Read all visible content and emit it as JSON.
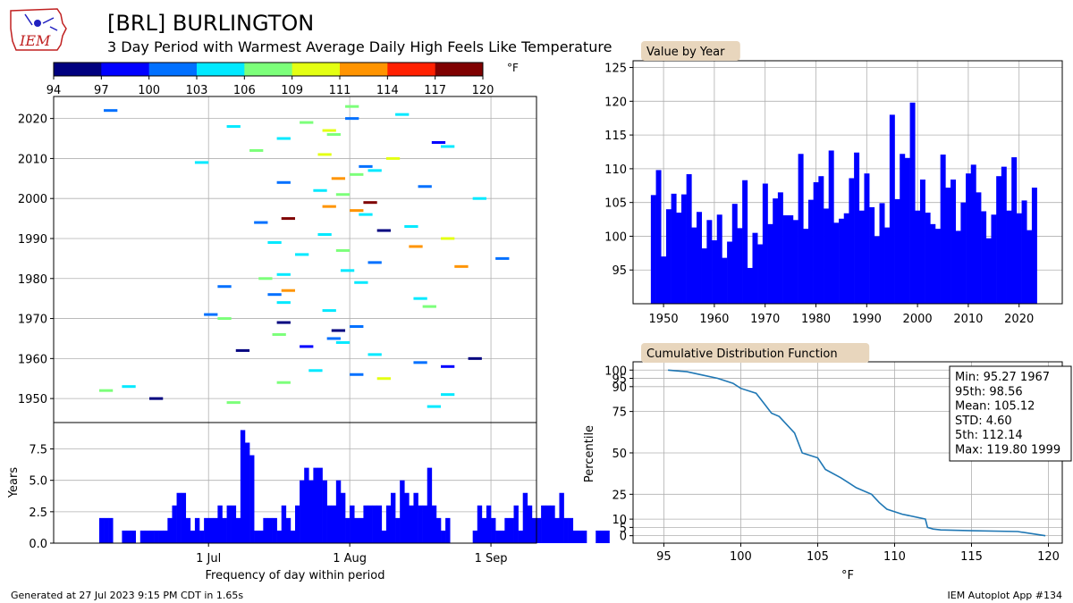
{
  "header": {
    "title": "[BRL] BURLINGTON",
    "subtitle": "3 Day Period with Warmest Average Daily High Feels Like Temperature",
    "logo_text": "IEM"
  },
  "footer": {
    "left": "Generated at 27 Jul 2023 9:15 PM CDT in 1.65s",
    "right": "IEM Autoplot App #134"
  },
  "colors": {
    "bar": "#0000ff",
    "cdf_line": "#1f77b4",
    "grid": "#b0b0b0",
    "panel_label_bg": "#e8d6bd",
    "colorbar": [
      "#00007f",
      "#0000ff",
      "#0070ff",
      "#00e9ff",
      "#7cff7a",
      "#e4ff13",
      "#ff9400",
      "#ff2000",
      "#7f0000"
    ]
  },
  "chart_data": [
    {
      "id": "colorbar",
      "type": "colorbar",
      "ticks": [
        "94",
        "97",
        "100",
        "103",
        "106",
        "109",
        "111",
        "114",
        "117",
        "120"
      ],
      "unit": "°F"
    },
    {
      "id": "periods",
      "type": "scatter",
      "ylabel": "",
      "yticks": [
        1950,
        1960,
        1970,
        1980,
        1990,
        2000,
        2010,
        2020
      ],
      "ylim": [
        1944,
        2025.5
      ],
      "xlim_doy": [
        148,
        254
      ],
      "grid": true,
      "points": [
        {
          "year": 1948,
          "start": 230,
          "value": 104
        },
        {
          "year": 1949,
          "start": 186,
          "value": 108
        },
        {
          "year": 1950,
          "start": 169,
          "value": 94
        },
        {
          "year": 1951,
          "start": 233,
          "value": 104
        },
        {
          "year": 1952,
          "start": 158,
          "value": 107
        },
        {
          "year": 1953,
          "start": 163,
          "value": 104
        },
        {
          "year": 1954,
          "start": 197,
          "value": 106
        },
        {
          "year": 1955,
          "start": 219,
          "value": 110
        },
        {
          "year": 1956,
          "start": 213,
          "value": 101
        },
        {
          "year": 1957,
          "start": 204,
          "value": 104
        },
        {
          "year": 1958,
          "start": 233,
          "value": 99
        },
        {
          "year": 1959,
          "start": 227,
          "value": 102
        },
        {
          "year": 1960,
          "start": 239,
          "value": 95
        },
        {
          "year": 1961,
          "start": 217,
          "value": 104
        },
        {
          "year": 1962,
          "start": 188,
          "value": 95
        },
        {
          "year": 1963,
          "start": 202,
          "value": 98
        },
        {
          "year": 1964,
          "start": 210,
          "value": 104
        },
        {
          "year": 1965,
          "start": 208,
          "value": 101
        },
        {
          "year": 1966,
          "start": 196,
          "value": 107
        },
        {
          "year": 1967,
          "start": 209,
          "value": 95
        },
        {
          "year": 1968,
          "start": 213,
          "value": 101
        },
        {
          "year": 1969,
          "start": 197,
          "value": 96
        },
        {
          "year": 1970,
          "start": 184,
          "value": 106
        },
        {
          "year": 1971,
          "start": 181,
          "value": 101
        },
        {
          "year": 1972,
          "start": 207,
          "value": 104
        },
        {
          "year": 1973,
          "start": 229,
          "value": 107
        },
        {
          "year": 1974,
          "start": 197,
          "value": 104
        },
        {
          "year": 1975,
          "start": 227,
          "value": 104
        },
        {
          "year": 1976,
          "start": 195,
          "value": 101
        },
        {
          "year": 1977,
          "start": 198,
          "value": 112
        },
        {
          "year": 1978,
          "start": 184,
          "value": 100
        },
        {
          "year": 1979,
          "start": 214,
          "value": 104
        },
        {
          "year": 1980,
          "start": 193,
          "value": 106
        },
        {
          "year": 1981,
          "start": 197,
          "value": 105
        },
        {
          "year": 1982,
          "start": 211,
          "value": 103
        },
        {
          "year": 1983,
          "start": 236,
          "value": 113
        },
        {
          "year": 1984,
          "start": 217,
          "value": 101
        },
        {
          "year": 1985,
          "start": 245,
          "value": 101
        },
        {
          "year": 1986,
          "start": 201,
          "value": 103
        },
        {
          "year": 1987,
          "start": 210,
          "value": 107
        },
        {
          "year": 1988,
          "start": 226,
          "value": 112
        },
        {
          "year": 1989,
          "start": 195,
          "value": 104
        },
        {
          "year": 1990,
          "start": 233,
          "value": 109
        },
        {
          "year": 1991,
          "start": 206,
          "value": 104
        },
        {
          "year": 1992,
          "start": 219,
          "value": 96
        },
        {
          "year": 1993,
          "start": 225,
          "value": 104
        },
        {
          "year": 1994,
          "start": 192,
          "value": 100
        },
        {
          "year": 1995,
          "start": 198,
          "value": 119
        },
        {
          "year": 1996,
          "start": 215,
          "value": 104
        },
        {
          "year": 1997,
          "start": 213,
          "value": 112
        },
        {
          "year": 1998,
          "start": 207,
          "value": 113
        },
        {
          "year": 1999,
          "start": 216,
          "value": 120
        },
        {
          "year": 2000,
          "start": 240,
          "value": 104
        },
        {
          "year": 2001,
          "start": 210,
          "value": 107
        },
        {
          "year": 2002,
          "start": 205,
          "value": 104
        },
        {
          "year": 2003,
          "start": 228,
          "value": 101
        },
        {
          "year": 2004,
          "start": 197,
          "value": 101
        },
        {
          "year": 2005,
          "start": 209,
          "value": 113
        },
        {
          "year": 2006,
          "start": 213,
          "value": 106
        },
        {
          "year": 2007,
          "start": 217,
          "value": 105
        },
        {
          "year": 2008,
          "start": 215,
          "value": 101
        },
        {
          "year": 2009,
          "start": 179,
          "value": 104
        },
        {
          "year": 2010,
          "start": 221,
          "value": 110
        },
        {
          "year": 2011,
          "start": 206,
          "value": 109
        },
        {
          "year": 2012,
          "start": 191,
          "value": 106
        },
        {
          "year": 2013,
          "start": 233,
          "value": 104
        },
        {
          "year": 2014,
          "start": 231,
          "value": 98
        },
        {
          "year": 2015,
          "start": 197,
          "value": 104
        },
        {
          "year": 2016,
          "start": 208,
          "value": 106
        },
        {
          "year": 2017,
          "start": 207,
          "value": 109
        },
        {
          "year": 2018,
          "start": 186,
          "value": 104
        },
        {
          "year": 2019,
          "start": 202,
          "value": 106
        },
        {
          "year": 2020,
          "start": 212,
          "value": 101
        },
        {
          "year": 2021,
          "start": 223,
          "value": 104
        },
        {
          "year": 2022,
          "start": 159,
          "value": 101
        },
        {
          "year": 2023,
          "start": 212,
          "value": 106
        }
      ]
    },
    {
      "id": "frequency",
      "type": "bar",
      "xlabel": "Frequency of day within period",
      "ylabel": "Years",
      "xticks": [
        {
          "label": "1 Jul",
          "doy": 182
        },
        {
          "label": "1 Aug",
          "doy": 213
        },
        {
          "label": "1 Sep",
          "doy": 244
        }
      ],
      "yticks": [
        "0.0",
        "2.5",
        "5.0",
        "7.5"
      ],
      "ylim": [
        0,
        9.6
      ],
      "start_doy": 158,
      "values": [
        2,
        2,
        2,
        0,
        0,
        1,
        1,
        1,
        0,
        1,
        1,
        1,
        1,
        1,
        1,
        2,
        3,
        4,
        4,
        2,
        1,
        2,
        1,
        2,
        2,
        2,
        3,
        2,
        3,
        3,
        2,
        9,
        8,
        7,
        1,
        1,
        2,
        2,
        2,
        1,
        3,
        2,
        1,
        3,
        5,
        6,
        5,
        6,
        6,
        5,
        3,
        3,
        5,
        4,
        2,
        3,
        2,
        2,
        3,
        3,
        3,
        3,
        1,
        3,
        4,
        2,
        5,
        4,
        3,
        4,
        3,
        3,
        6,
        3,
        2,
        1,
        2,
        0,
        0,
        0,
        0,
        0,
        1,
        3,
        2,
        3,
        2,
        1,
        1,
        2,
        2,
        3,
        1,
        4,
        3,
        2,
        2,
        3,
        3,
        3,
        2,
        4,
        2,
        2,
        1,
        1,
        1,
        0,
        0,
        1,
        1,
        1
      ]
    },
    {
      "id": "value_by_year",
      "type": "bar",
      "label": "Value by Year",
      "xlim": [
        1944,
        2028.5
      ],
      "ylim": [
        90,
        126
      ],
      "xticks": [
        1950,
        1960,
        1970,
        1980,
        1990,
        2000,
        2010,
        2020
      ],
      "yticks": [
        95,
        100,
        105,
        110,
        115,
        120,
        125
      ],
      "years": [
        1948,
        1949,
        1950,
        1951,
        1952,
        1953,
        1954,
        1955,
        1956,
        1957,
        1958,
        1959,
        1960,
        1961,
        1962,
        1963,
        1964,
        1965,
        1966,
        1967,
        1968,
        1969,
        1970,
        1971,
        1972,
        1973,
        1974,
        1975,
        1976,
        1977,
        1978,
        1979,
        1980,
        1981,
        1982,
        1983,
        1984,
        1985,
        1986,
        1987,
        1988,
        1989,
        1990,
        1991,
        1992,
        1993,
        1994,
        1995,
        1996,
        1997,
        1998,
        1999,
        2000,
        2001,
        2002,
        2003,
        2004,
        2005,
        2006,
        2007,
        2008,
        2009,
        2010,
        2011,
        2012,
        2013,
        2014,
        2015,
        2016,
        2017,
        2018,
        2019,
        2020,
        2021,
        2022,
        2023
      ],
      "values": [
        106.1,
        109.8,
        97.0,
        104.0,
        106.3,
        103.5,
        106.2,
        109.2,
        101.3,
        103.6,
        98.2,
        102.4,
        99.4,
        103.2,
        96.8,
        99.2,
        104.8,
        101.2,
        108.3,
        95.3,
        100.5,
        98.8,
        107.8,
        101.8,
        105.6,
        106.5,
        103.1,
        103.1,
        102.4,
        112.2,
        101.1,
        105.4,
        108.0,
        108.9,
        104.1,
        112.7,
        102.0,
        102.6,
        103.4,
        108.6,
        112.4,
        103.8,
        109.3,
        104.3,
        100.0,
        104.9,
        101.3,
        118.0,
        105.5,
        112.2,
        111.6,
        119.8,
        103.8,
        108.4,
        103.5,
        101.8,
        101.1,
        112.1,
        107.2,
        108.4,
        100.8,
        105.0,
        109.3,
        110.6,
        106.5,
        103.7,
        99.7,
        103.2,
        108.9,
        110.3,
        103.8,
        111.7,
        103.4,
        105.3,
        100.9,
        107.2
      ]
    },
    {
      "id": "cdf",
      "type": "line",
      "label": "Cumulative Distribution Function",
      "xlabel": "°F",
      "ylabel": "Percentile",
      "xlim": [
        93.0,
        120.9
      ],
      "ylim": [
        -4.5,
        105
      ],
      "xticks": [
        95,
        100,
        105,
        110,
        115,
        120
      ],
      "yticks": [
        0,
        5,
        10,
        25,
        50,
        75,
        90,
        95,
        100
      ],
      "x": [
        95.27,
        96.5,
        97.5,
        98.5,
        99.5,
        100.0,
        101.0,
        101.5,
        102.0,
        102.5,
        103.0,
        103.5,
        104.0,
        105.0,
        105.5,
        106.5,
        107.0,
        107.5,
        108.5,
        109.0,
        109.5,
        110.5,
        111.0,
        112.0,
        112.14,
        112.5,
        113.0,
        115.0,
        118.0,
        119.8
      ],
      "y": [
        100,
        99,
        97,
        95,
        92,
        89,
        86,
        80,
        74,
        72,
        67,
        62,
        50,
        47,
        40,
        35,
        32,
        29,
        25,
        20,
        16,
        13,
        12,
        10,
        5,
        4,
        3.5,
        3,
        2.5,
        0
      ],
      "stats": [
        "Min: 95.27 1967",
        "95th: 98.56",
        "Mean: 105.12",
        "STD: 4.60",
        "5th: 112.14",
        "Max: 119.80 1999"
      ]
    }
  ]
}
